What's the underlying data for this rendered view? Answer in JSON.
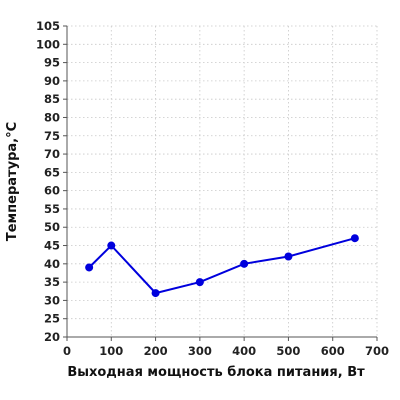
{
  "chart_data": {
    "type": "line",
    "title": "",
    "xlabel": "Выходная мощность блока питания, Вт",
    "ylabel": "Температура,°C",
    "xlim": [
      0,
      700
    ],
    "ylim": [
      20,
      105
    ],
    "x_ticks": [
      0,
      100,
      200,
      300,
      400,
      500,
      600,
      700
    ],
    "y_ticks": [
      20,
      25,
      30,
      35,
      40,
      45,
      50,
      55,
      60,
      65,
      70,
      75,
      80,
      85,
      90,
      95,
      100,
      105
    ],
    "grid": true,
    "legend": "none",
    "series": [
      {
        "color": "#0000dd",
        "marker": "circle",
        "x": [
          50,
          100,
          200,
          300,
          400,
          500,
          650
        ],
        "values": [
          39,
          45,
          32,
          35,
          40,
          42,
          47
        ]
      }
    ]
  }
}
